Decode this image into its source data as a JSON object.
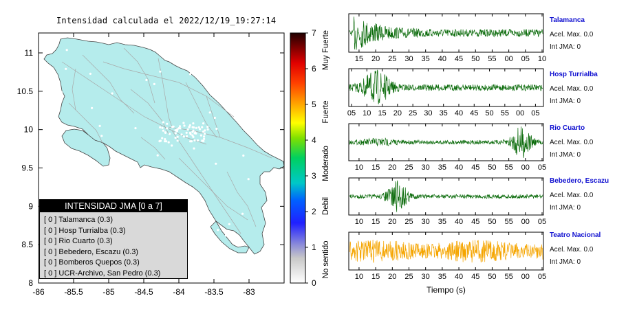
{
  "map": {
    "title": "Intensidad calculada el 2022/12/19_19:27:14",
    "x_ticks": [
      "-86",
      "-85.5",
      "-85",
      "-84.5",
      "-84",
      "-83.5",
      "-83"
    ],
    "y_ticks": [
      "11",
      "10.5",
      "10",
      "9.5",
      "9",
      "8.5",
      "8"
    ],
    "land_color": "#b5ecec"
  },
  "legend": {
    "header": "INTENSIDAD JMA [0 a 7]",
    "items": [
      {
        "value": "[ 0 ]",
        "label": "Talamanca (0.3)"
      },
      {
        "value": "[ 0 ]",
        "label": "Hosp Turrialba (0.3)"
      },
      {
        "value": "[ 0 ]",
        "label": "Rio Cuarto (0.3)"
      },
      {
        "value": "[ 0 ]",
        "label": "Bebedero, Escazu (0.3)"
      },
      {
        "value": "[ 0 ]",
        "label": "Bomberos Quepos (0.3)"
      },
      {
        "value": "[ 0 ]",
        "label": "UCR-Archivo, San Pedro (0.3)"
      }
    ]
  },
  "colorbar": {
    "ticks": [
      "7",
      "6",
      "5",
      "4",
      "3",
      "2",
      "1",
      "0"
    ],
    "labels": [
      "Muy Fuerte",
      "Fuerte",
      "Moderado",
      "Debil",
      "No sentido"
    ]
  },
  "traces": [
    {
      "station": "Talamanca",
      "acel": "Acel. Max. 0.0",
      "int": "Int JMA: 0",
      "color": "#0b6b0b",
      "ticks": [
        "15",
        "20",
        "25",
        "30",
        "35",
        "40",
        "45",
        "50",
        "55",
        "00",
        "05",
        "10"
      ]
    },
    {
      "station": "Hosp Turrialba",
      "acel": "Acel. Max. 0.0",
      "int": "Int JMA: 0",
      "color": "#0b6b0b",
      "ticks": [
        "05",
        "10",
        "15",
        "20",
        "25",
        "30",
        "35",
        "40",
        "45",
        "50",
        "55",
        "00",
        "05"
      ]
    },
    {
      "station": "Rio Cuarto",
      "acel": "Acel. Max. 0.0",
      "int": "Int JMA: 0",
      "color": "#0b6b0b",
      "ticks": [
        "10",
        "15",
        "20",
        "25",
        "30",
        "35",
        "40",
        "45",
        "50",
        "55",
        "00",
        "05"
      ]
    },
    {
      "station": "Bebedero, Escazu",
      "acel": "Acel. Max. 0.0",
      "int": "Int JMA: 0",
      "color": "#0b6b0b",
      "ticks": [
        "10",
        "15",
        "20",
        "25",
        "30",
        "35",
        "40",
        "45",
        "50",
        "55",
        "00",
        "05"
      ]
    },
    {
      "station": "Teatro Nacional",
      "acel": "Acel. Max. 0.0",
      "int": "Int JMA: 0",
      "color": "#f5a500",
      "ticks": [
        "10",
        "15",
        "20",
        "25",
        "30",
        "35",
        "40",
        "45",
        "50",
        "55",
        "00",
        "05"
      ]
    }
  ],
  "xaxis_label": "Tiempo (s)"
}
